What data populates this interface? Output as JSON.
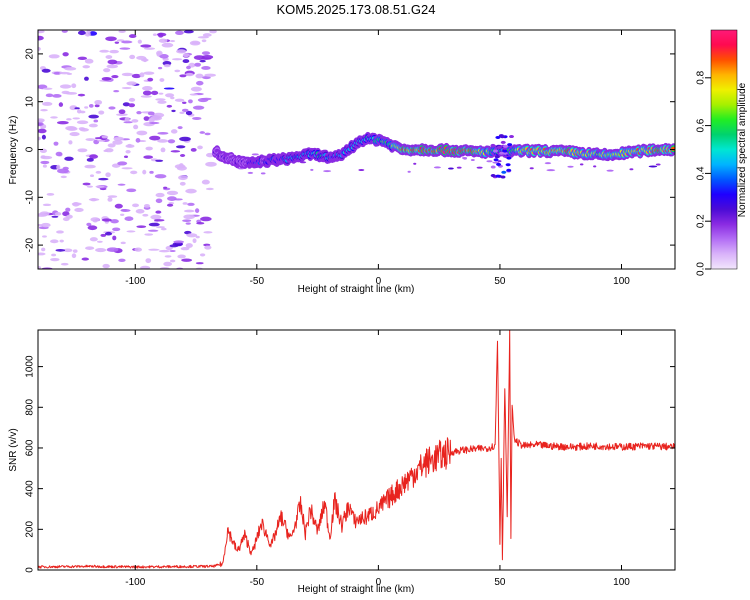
{
  "figure_title": "KOM5.2025.173.08.51.G24",
  "chart_data": [
    {
      "type": "heatmap",
      "title": "",
      "xlabel": "Height of straight line (km)",
      "ylabel": "Frequency (Hz)",
      "xlim": [
        -140,
        122
      ],
      "ylim": [
        -25,
        25
      ],
      "xticks": [
        "-100",
        "-50",
        "0",
        "50",
        "100"
      ],
      "yticks": [
        "-20",
        "-10",
        "0",
        "10",
        "20"
      ],
      "grid": false,
      "colorbar": {
        "label": "Normalized spectral amplitude",
        "range": [
          0,
          1
        ],
        "ticks": [
          "0.0",
          "0.2",
          "0.4",
          "0.6",
          "0.8"
        ],
        "colors": [
          "#f2e6fc",
          "#d9b3fa",
          "#b36ef5",
          "#8a2be2",
          "#4b0bd6",
          "#1f00ff",
          "#0058ff",
          "#00b4ff",
          "#00e6d2",
          "#00d26e",
          "#22ee22",
          "#a6f000",
          "#f0f000",
          "#ffb400",
          "#ff5000",
          "#ff0a50",
          "#ff1a78"
        ]
      },
      "ridge_points": [
        {
          "x": -67,
          "y": -0.5,
          "v": 0.25
        },
        {
          "x": -63,
          "y": -1.5,
          "v": 0.2
        },
        {
          "x": -58,
          "y": -2.5,
          "v": 0.22
        },
        {
          "x": -53,
          "y": -3.0,
          "v": 0.25
        },
        {
          "x": -48,
          "y": -2.5,
          "v": 0.3
        },
        {
          "x": -43,
          "y": -2.2,
          "v": 0.32
        },
        {
          "x": -38,
          "y": -2.0,
          "v": 0.36
        },
        {
          "x": -33,
          "y": -1.5,
          "v": 0.45
        },
        {
          "x": -28,
          "y": -1.0,
          "v": 0.45
        },
        {
          "x": -23,
          "y": -1.2,
          "v": 0.5
        },
        {
          "x": -19,
          "y": -2.0,
          "v": 0.35
        },
        {
          "x": -15,
          "y": -1.0,
          "v": 0.4
        },
        {
          "x": -11,
          "y": 0.5,
          "v": 0.45
        },
        {
          "x": -7,
          "y": 2.0,
          "v": 0.5
        },
        {
          "x": -3,
          "y": 2.2,
          "v": 0.55
        },
        {
          "x": 1,
          "y": 2.0,
          "v": 0.6
        },
        {
          "x": 5,
          "y": 1.0,
          "v": 0.6
        },
        {
          "x": 10,
          "y": 0.0,
          "v": 0.85
        },
        {
          "x": 20,
          "y": 0.0,
          "v": 0.9
        },
        {
          "x": 30,
          "y": -0.2,
          "v": 0.92
        },
        {
          "x": 40,
          "y": -0.5,
          "v": 0.9
        },
        {
          "x": 48,
          "y": -0.5,
          "v": 0.55
        },
        {
          "x": 52,
          "y": -0.5,
          "v": 0.5
        },
        {
          "x": 58,
          "y": -0.3,
          "v": 0.75
        },
        {
          "x": 68,
          "y": -0.3,
          "v": 0.85
        },
        {
          "x": 78,
          "y": -0.5,
          "v": 0.88
        },
        {
          "x": 88,
          "y": -1.0,
          "v": 0.75
        },
        {
          "x": 95,
          "y": -1.2,
          "v": 0.7
        },
        {
          "x": 105,
          "y": -0.5,
          "v": 0.8
        },
        {
          "x": 115,
          "y": 0.0,
          "v": 0.85
        },
        {
          "x": 122,
          "y": 0.0,
          "v": 0.85
        }
      ]
    },
    {
      "type": "line",
      "title": "",
      "xlabel": "Height of straight line (km)",
      "ylabel": "SNR (v/v)",
      "xlim": [
        -140,
        122
      ],
      "ylim": [
        0,
        1180
      ],
      "xticks": [
        "-100",
        "-50",
        "0",
        "50",
        "100"
      ],
      "yticks": [
        "0",
        "200",
        "400",
        "600",
        "800",
        "1000"
      ],
      "grid": false,
      "series": [
        {
          "color": "#e8231e",
          "x": [
            -140,
            -120,
            -100,
            -80,
            -68,
            -64,
            -62,
            -58,
            -55,
            -52,
            -48,
            -44,
            -40,
            -36,
            -32,
            -30,
            -28,
            -25,
            -22,
            -20,
            -18,
            -15,
            -12,
            -10,
            -5,
            0,
            5,
            10,
            15,
            20,
            25,
            30,
            35,
            40,
            45,
            48,
            49,
            50,
            50.5,
            51,
            52,
            53,
            54,
            54.5,
            55,
            56,
            58,
            60,
            65,
            70,
            80,
            90,
            100,
            110,
            122
          ],
          "y": [
            15,
            18,
            15,
            17,
            18,
            30,
            200,
            90,
            170,
            80,
            230,
            120,
            260,
            150,
            320,
            180,
            300,
            190,
            330,
            160,
            340,
            220,
            320,
            240,
            260,
            300,
            360,
            420,
            480,
            530,
            560,
            580,
            590,
            595,
            600,
            610,
            1130,
            140,
            560,
            60,
            900,
            250,
            1170,
            150,
            800,
            640,
            620,
            610,
            615,
            610,
            605,
            610,
            605,
            610,
            605
          ]
        }
      ]
    }
  ]
}
